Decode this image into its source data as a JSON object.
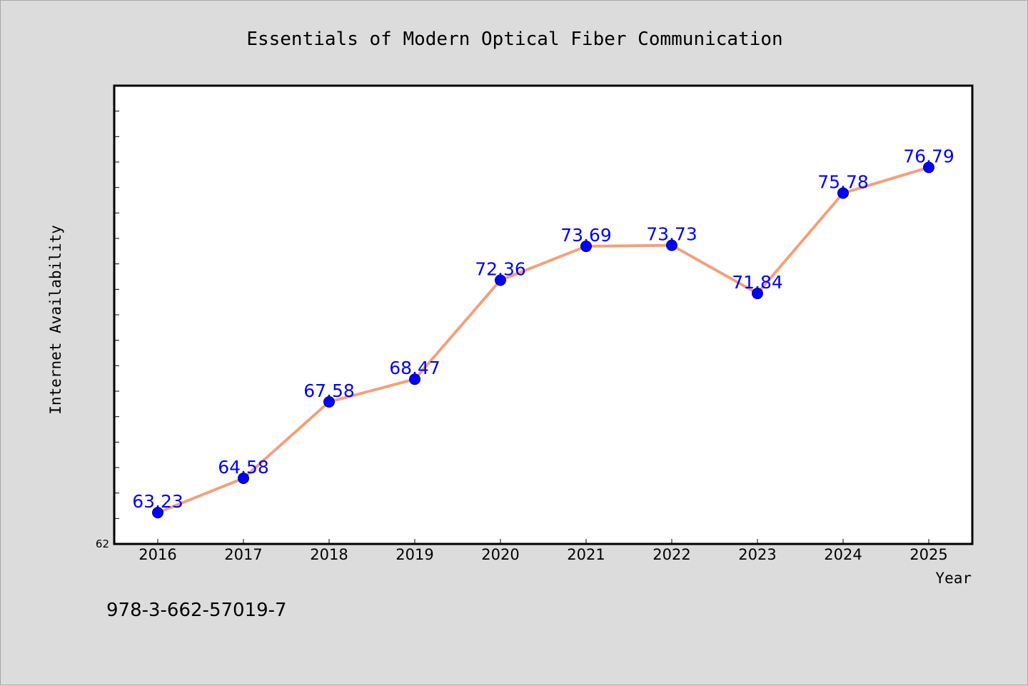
{
  "chart_data": {
    "type": "line",
    "title": "Essentials of Modern Optical Fiber Communication",
    "xlabel": "Year",
    "ylabel": "Internet Availability",
    "categories": [
      "2016",
      "2017",
      "2018",
      "2019",
      "2020",
      "2021",
      "2022",
      "2023",
      "2024",
      "2025"
    ],
    "series": [
      {
        "values": [
          63.23,
          64.58,
          67.58,
          68.47,
          72.36,
          73.69,
          73.73,
          71.84,
          75.78,
          76.79
        ],
        "data_labels": [
          "63.23",
          "64.58",
          "67.58",
          "68.47",
          "72.36",
          "73.69",
          "73.73",
          "71.84",
          "75.78",
          "76.79"
        ]
      }
    ],
    "ylim": [
      62,
      80
    ],
    "y_tick_labels": [
      "62"
    ],
    "grid": false,
    "legend": "none",
    "colors": {
      "line": "#f4a07c",
      "marker": "#0000ff",
      "data_label": "#0000ff",
      "background": "#dcdcdc",
      "plot_area": "#ffffff"
    }
  },
  "footer": {
    "isbn": "978-3-662-57019-7"
  }
}
